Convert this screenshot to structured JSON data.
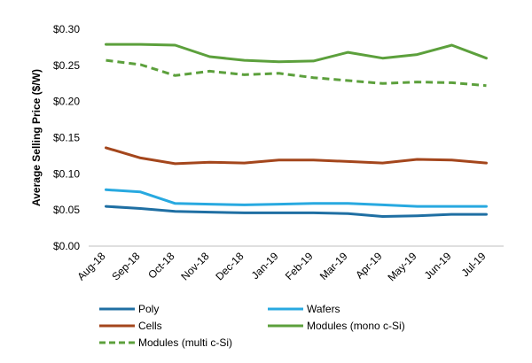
{
  "chart_data": {
    "type": "line",
    "title": "",
    "xlabel": "",
    "ylabel": "Average Selling Price ($/W)",
    "categories": [
      "Aug-18",
      "Sep-18",
      "Oct-18",
      "Nov-18",
      "Dec-18",
      "Jan-19",
      "Feb-19",
      "Mar-19",
      "Apr-19",
      "May-19",
      "Jun-19",
      "Jul-19"
    ],
    "ylim": [
      0,
      0.3
    ],
    "yticks": [
      0,
      0.05,
      0.1,
      0.15,
      0.2,
      0.25,
      0.3
    ],
    "ytick_labels": [
      "$0.00",
      "$0.05",
      "$0.10",
      "$0.15",
      "$0.20",
      "$0.25",
      "$0.30"
    ],
    "grid": false,
    "legend_position": "bottom",
    "series": [
      {
        "name": "Poly",
        "color": "#1f6fa3",
        "dash": false,
        "values": [
          0.055,
          0.052,
          0.048,
          0.047,
          0.046,
          0.046,
          0.046,
          0.045,
          0.041,
          0.042,
          0.044,
          0.044
        ]
      },
      {
        "name": "Wafers",
        "color": "#28a9e0",
        "dash": false,
        "values": [
          0.078,
          0.075,
          0.059,
          0.058,
          0.057,
          0.058,
          0.059,
          0.059,
          0.057,
          0.055,
          0.055,
          0.055
        ]
      },
      {
        "name": "Cells",
        "color": "#a4461c",
        "dash": false,
        "values": [
          0.136,
          0.122,
          0.114,
          0.116,
          0.115,
          0.119,
          0.119,
          0.117,
          0.115,
          0.12,
          0.119,
          0.115
        ]
      },
      {
        "name": "Modules (mono c-Si)",
        "color": "#5ca03c",
        "dash": false,
        "values": [
          0.279,
          0.279,
          0.278,
          0.262,
          0.257,
          0.255,
          0.256,
          0.268,
          0.26,
          0.265,
          0.278,
          0.26
        ]
      },
      {
        "name": "Modules (multi c-Si)",
        "color": "#5ca03c",
        "dash": true,
        "values": [
          0.257,
          0.251,
          0.236,
          0.242,
          0.237,
          0.239,
          0.233,
          0.229,
          0.225,
          0.227,
          0.226,
          0.222
        ]
      }
    ]
  }
}
